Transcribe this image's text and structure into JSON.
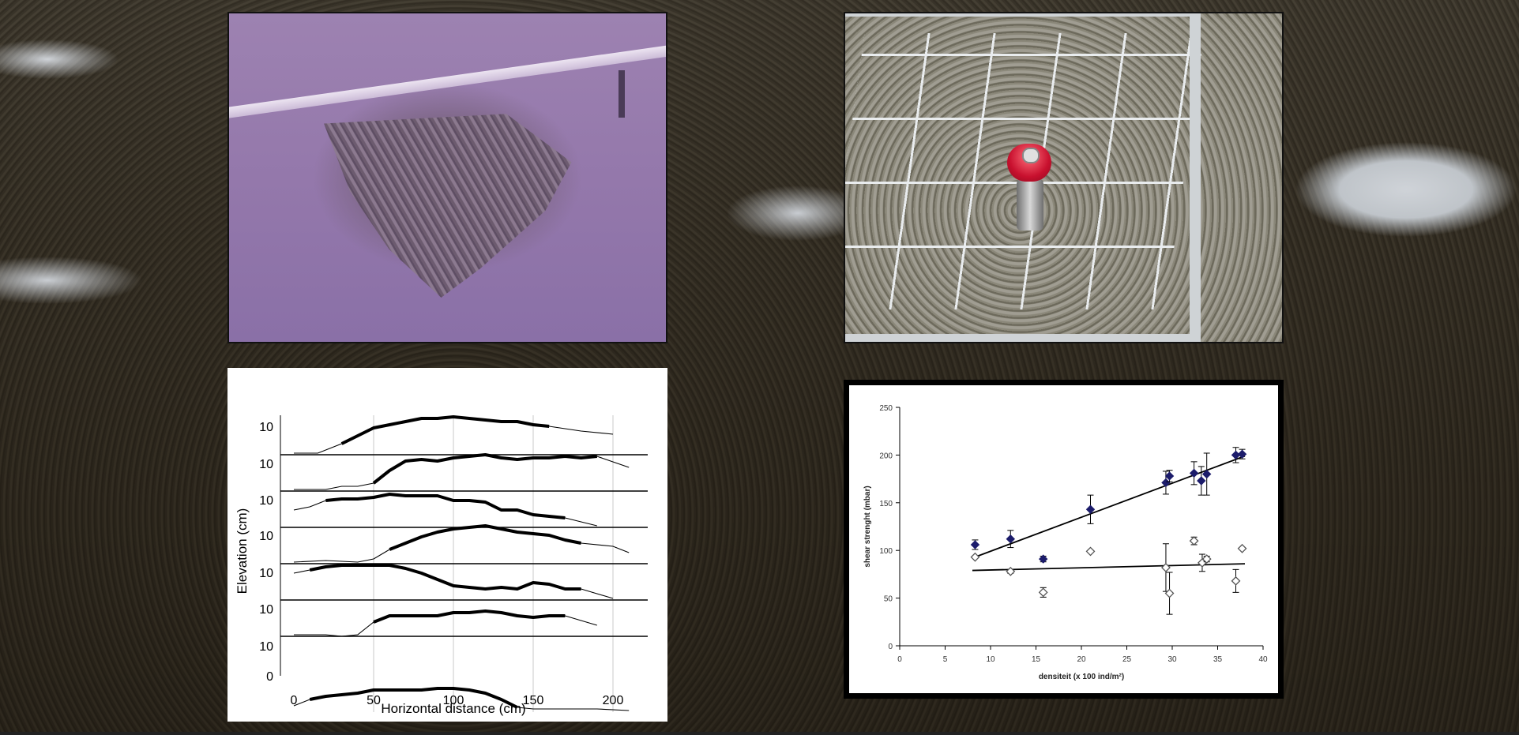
{
  "chart_data": [
    {
      "type": "line",
      "xlabel": "Horizontal distance (cm)",
      "ylabel": "Elevation (cm)",
      "x_ticks": [
        "0",
        "50",
        "100",
        "150",
        "200"
      ],
      "xlim": [
        -10,
        220
      ],
      "y_tick_labels": [
        "10",
        "10",
        "10",
        "10",
        "10",
        "10",
        "10",
        "0"
      ],
      "profiles": [
        {
          "x": [
            0,
            15,
            30,
            50,
            60,
            70,
            80,
            90,
            100,
            110,
            120,
            130,
            140,
            150,
            160,
            180,
            200
          ],
          "y": [
            0,
            0,
            3,
            8,
            9,
            10,
            11,
            11,
            11.5,
            11,
            10.5,
            10,
            10,
            9,
            8.5,
            7,
            6
          ],
          "thick": [
            30,
            160
          ]
        },
        {
          "x": [
            0,
            20,
            30,
            40,
            50,
            60,
            70,
            80,
            90,
            100,
            110,
            120,
            130,
            140,
            150,
            160,
            170,
            180,
            190,
            210
          ],
          "y": [
            0,
            0,
            1,
            1,
            2,
            6,
            9,
            9.5,
            9,
            10,
            10.5,
            11,
            10,
            9.5,
            10,
            10,
            10.5,
            10,
            10.5,
            7
          ],
          "thick": [
            50,
            190
          ]
        },
        {
          "x": [
            0,
            10,
            20,
            30,
            40,
            50,
            60,
            70,
            80,
            90,
            100,
            110,
            120,
            130,
            140,
            150,
            160,
            170,
            190
          ],
          "y": [
            5,
            6,
            8,
            8.5,
            8.5,
            9,
            10,
            9.5,
            9.5,
            9.5,
            8,
            8,
            7.5,
            5,
            5,
            3.5,
            3,
            2.5,
            0
          ],
          "thick": [
            20,
            170
          ]
        },
        {
          "x": [
            0,
            20,
            40,
            50,
            60,
            70,
            80,
            90,
            100,
            110,
            120,
            130,
            140,
            150,
            160,
            170,
            180,
            200,
            210
          ],
          "y": [
            0,
            0.5,
            0,
            1,
            4,
            6,
            8,
            9.5,
            10.5,
            11,
            11.5,
            10.5,
            9.5,
            9,
            8.5,
            7,
            6,
            5,
            3
          ],
          "thick": [
            60,
            180
          ]
        },
        {
          "x": [
            0,
            10,
            20,
            30,
            40,
            50,
            60,
            70,
            80,
            90,
            100,
            110,
            120,
            130,
            140,
            150,
            160,
            170,
            180,
            200
          ],
          "y": [
            8,
            9,
            10,
            10.5,
            10.5,
            10.5,
            10.5,
            9.5,
            8,
            6,
            4,
            3.5,
            3,
            3.5,
            3,
            5,
            4.5,
            3,
            3,
            0
          ],
          "thick": [
            10,
            180
          ]
        },
        {
          "x": [
            0,
            10,
            20,
            30,
            40,
            50,
            60,
            70,
            80,
            90,
            100,
            110,
            120,
            130,
            140,
            150,
            160,
            170,
            190
          ],
          "y": [
            0,
            0,
            0,
            -0.5,
            0,
            4,
            6,
            6,
            6,
            6,
            7,
            7,
            7.5,
            7,
            6,
            5.5,
            6,
            6,
            3
          ],
          "thick": [
            50,
            170
          ]
        },
        {
          "x": [
            0,
            10,
            20,
            30,
            40,
            50,
            60,
            70,
            80,
            90,
            100,
            110,
            120,
            130,
            140,
            150,
            160,
            170,
            190,
            210
          ],
          "y": [
            1,
            3,
            4,
            4.5,
            5,
            6,
            6,
            6,
            6,
            6.5,
            6.5,
            6,
            5,
            3,
            0.5,
            0,
            0,
            0,
            0,
            -0.5
          ],
          "thick": [
            10,
            140
          ]
        }
      ]
    },
    {
      "type": "scatter",
      "xlabel": "densiteit (x 100 ind/m²)",
      "ylabel": "shear strenght (mbar)",
      "xlim": [
        0,
        40
      ],
      "ylim": [
        0,
        250
      ],
      "x_ticks": [
        "0",
        "5",
        "10",
        "15",
        "20",
        "25",
        "30",
        "35",
        "40"
      ],
      "y_ticks": [
        "0",
        "50",
        "100",
        "150",
        "200",
        "250"
      ],
      "series": [
        {
          "marker": "filled-diamond",
          "color": "#1c1c6b",
          "points": [
            {
              "x": 8.3,
              "y": 106,
              "err": 5
            },
            {
              "x": 12.2,
              "y": 112,
              "err": 9
            },
            {
              "x": 15.8,
              "y": 91,
              "err": 3
            },
            {
              "x": 21,
              "y": 143,
              "err": 15
            },
            {
              "x": 29.3,
              "y": 171,
              "err": 12
            },
            {
              "x": 29.7,
              "y": 178,
              "err": 6
            },
            {
              "x": 32.4,
              "y": 181,
              "err": 12
            },
            {
              "x": 33.2,
              "y": 173,
              "err": 15
            },
            {
              "x": 33.8,
              "y": 180,
              "err": 22
            },
            {
              "x": 37,
              "y": 200,
              "err": 8
            },
            {
              "x": 37.7,
              "y": 201,
              "err": 5
            }
          ],
          "trend": [
            [
              8,
              92
            ],
            [
              38,
              199
            ]
          ]
        },
        {
          "marker": "open-diamond",
          "color": "#555555",
          "points": [
            {
              "x": 8.3,
              "y": 93,
              "err": 0
            },
            {
              "x": 12.2,
              "y": 78,
              "err": 2
            },
            {
              "x": 15.8,
              "y": 56,
              "err": 5
            },
            {
              "x": 21,
              "y": 99,
              "err": 0
            },
            {
              "x": 29.3,
              "y": 82,
              "err": 25
            },
            {
              "x": 29.7,
              "y": 55,
              "err": 22
            },
            {
              "x": 32.4,
              "y": 110,
              "err": 4
            },
            {
              "x": 33.3,
              "y": 87,
              "err": 9
            },
            {
              "x": 33.8,
              "y": 91,
              "err": 3
            },
            {
              "x": 37,
              "y": 68,
              "err": 12
            },
            {
              "x": 37.7,
              "y": 102,
              "err": 0
            }
          ],
          "trend": [
            [
              8,
              79
            ],
            [
              38,
              86
            ]
          ]
        }
      ]
    }
  ]
}
